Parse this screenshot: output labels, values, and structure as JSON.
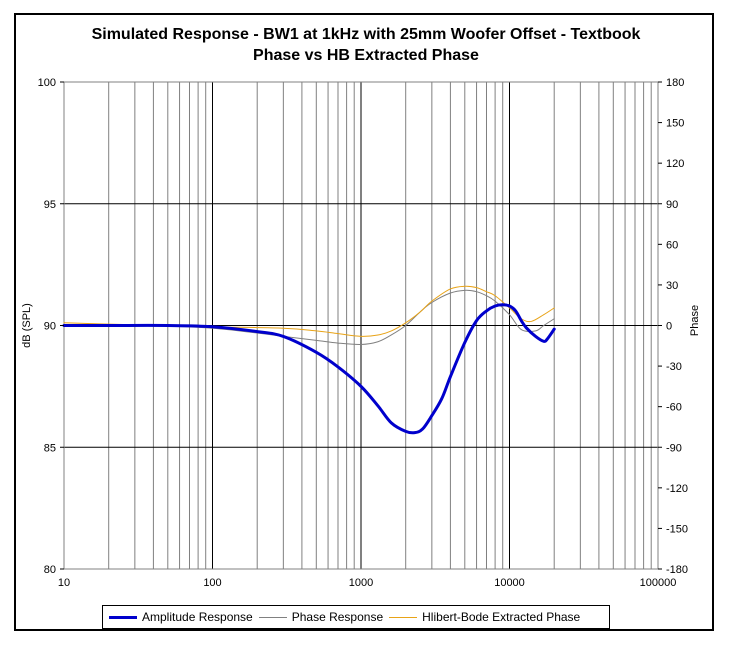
{
  "chart_data": {
    "type": "line",
    "title_lines": [
      "Simulated Response - BW1 at 1kHz with 25mm Woofer Offset  - Textbook",
      "Phase vs HB Extracted Phase"
    ],
    "xlabel": "",
    "ylabel_left": "dB (SPL)",
    "ylabel_right": "Phase",
    "x_scale": "log",
    "xlim": [
      10,
      100000
    ],
    "ylim_left": [
      80,
      100
    ],
    "ylim_right": [
      -180,
      180
    ],
    "x_ticks": [
      "10",
      "100",
      "1000",
      "10000",
      "100000"
    ],
    "y_left_ticks": [
      "100",
      "95",
      "90",
      "85",
      "80"
    ],
    "y_right_ticks": [
      "180",
      "150",
      "120",
      "90",
      "60",
      "30",
      "0",
      "-30",
      "-60",
      "-90",
      "-120",
      "-150",
      "-180"
    ],
    "grid": true,
    "legend_position": "bottom",
    "series": [
      {
        "name": "Amplitude Response",
        "axis": "left",
        "color": "#0000cc",
        "x": [
          10,
          20,
          50,
          100,
          200,
          300,
          500,
          700,
          1000,
          1300,
          1600,
          2000,
          2300,
          2600,
          3000,
          3500,
          4000,
          5000,
          6000,
          7000,
          8000,
          9000,
          10000,
          11000,
          12000,
          13000,
          15000,
          17000,
          18000,
          20000
        ],
        "y": [
          90.0,
          90.0,
          90.0,
          89.95,
          89.75,
          89.55,
          88.9,
          88.3,
          87.5,
          86.7,
          86.0,
          85.65,
          85.6,
          85.75,
          86.3,
          87.0,
          87.9,
          89.3,
          90.2,
          90.6,
          90.8,
          90.85,
          90.8,
          90.6,
          90.2,
          89.9,
          89.55,
          89.35,
          89.45,
          89.85
        ]
      },
      {
        "name": "Phase Response",
        "axis": "right",
        "color": "#808080",
        "x": [
          10,
          30,
          100,
          300,
          500,
          700,
          1000,
          1300,
          1600,
          2000,
          2500,
          3000,
          4000,
          5000,
          6000,
          7000,
          8000,
          10000,
          12000,
          15000,
          17000,
          20000
        ],
        "y": [
          0,
          0,
          -2,
          -8,
          -11,
          -13,
          -14,
          -12,
          -7,
          0,
          10,
          17,
          24,
          26,
          25,
          22,
          18,
          8,
          -3,
          -4,
          0,
          5
        ]
      },
      {
        "name": "Hlibert-Bode Extracted Phase",
        "axis": "right",
        "color": "#e8a317",
        "x": [
          10,
          20,
          50,
          100,
          300,
          500,
          700,
          1000,
          1300,
          1600,
          2000,
          2500,
          3000,
          4000,
          5000,
          6000,
          7000,
          8000,
          10000,
          12000,
          14000,
          17000,
          20000
        ],
        "y": [
          2,
          1,
          0,
          -1,
          -2,
          -4,
          -6,
          -8,
          -7,
          -4,
          2,
          10,
          18,
          27,
          29,
          28,
          25,
          22,
          13,
          5,
          3,
          8,
          13
        ]
      }
    ]
  }
}
